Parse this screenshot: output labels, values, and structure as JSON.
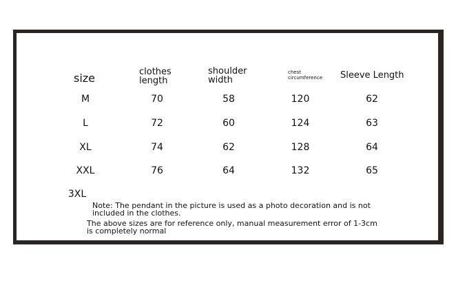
{
  "table": {
    "headers": [
      "size",
      "clothes\nlength",
      "shoulder\nwidth",
      "chest\ncircumference",
      "Sleeve Length"
    ],
    "rows": [
      [
        "M",
        "70",
        "58",
        "120",
        "62"
      ],
      [
        "L",
        "72",
        "60",
        "124",
        "63"
      ],
      [
        "XL",
        "74",
        "62",
        "128",
        "64"
      ],
      [
        "XXL",
        "76",
        "64",
        "132",
        "65"
      ],
      [
        "3XL",
        "",
        "",
        "",
        ""
      ]
    ]
  },
  "notes": {
    "note1_line1": "Note: The pendant in the picture is used as a photo decoration and is not",
    "note1_line2": "included in the clothes.",
    "note2_line1": "The above sizes are for reference only, manual measurement error of 1-3cm",
    "note2_line2": "is completely normal"
  },
  "colors": {
    "frame": "#2a2624",
    "background": "#ffffff",
    "text": "#111111"
  }
}
